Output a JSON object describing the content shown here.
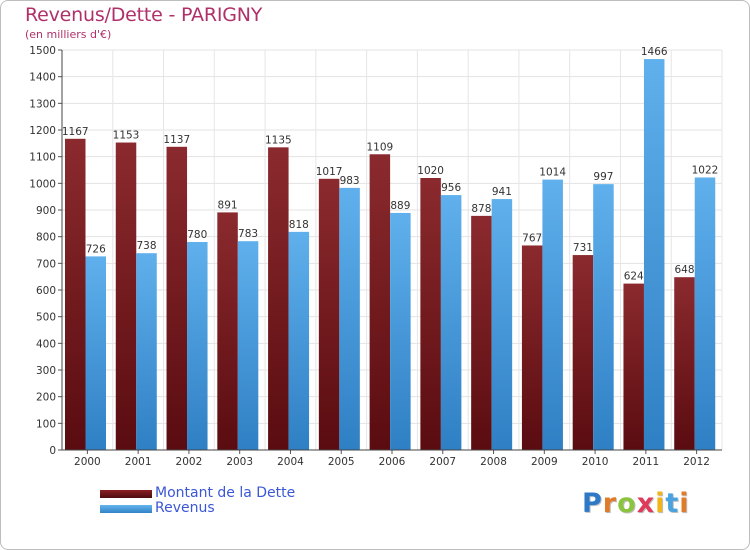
{
  "title": "Revenus/Dette - PARIGNY",
  "subtitle": "(en milliers d'€)",
  "logo_text": "Proxiti",
  "colors": {
    "dette": "#7b1d22",
    "revenus": "#4ea6e4",
    "title": "#b0306a",
    "legend_text": "#3b57d6"
  },
  "chart_data": {
    "type": "bar",
    "title": "Revenus/Dette - PARIGNY",
    "subtitle": "(en milliers d'€)",
    "xlabel": "",
    "ylabel": "",
    "ylim": [
      0,
      1500
    ],
    "yticks": [
      0,
      100,
      200,
      300,
      400,
      500,
      600,
      700,
      800,
      900,
      1000,
      1100,
      1200,
      1300,
      1400,
      1500
    ],
    "grid": true,
    "legend_position": "bottom-left",
    "categories": [
      "2000",
      "2001",
      "2002",
      "2003",
      "2004",
      "2005",
      "2006",
      "2007",
      "2008",
      "2009",
      "2010",
      "2011",
      "2012"
    ],
    "series": [
      {
        "name": "Montant de la Dette",
        "color": "#7b1d22",
        "values": [
          1167,
          1153,
          1137,
          891,
          1135,
          1017,
          1109,
          1020,
          878,
          767,
          731,
          624,
          648
        ]
      },
      {
        "name": "Revenus",
        "color": "#4ea6e4",
        "values": [
          726,
          738,
          780,
          783,
          818,
          983,
          889,
          956,
          941,
          1014,
          997,
          1466,
          1022
        ]
      }
    ]
  }
}
